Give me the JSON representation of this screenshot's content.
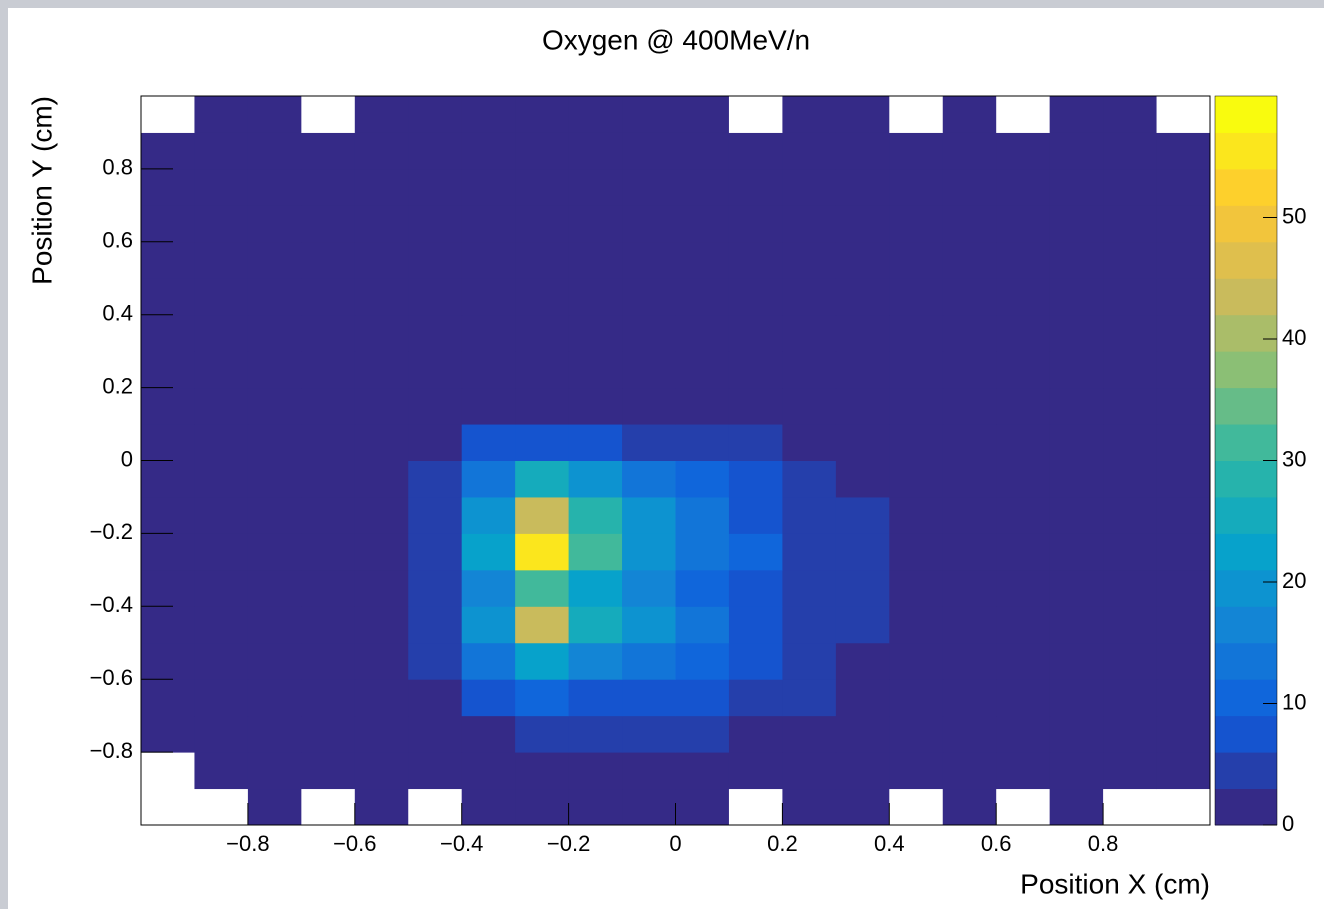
{
  "chart_data": {
    "type": "heatmap",
    "title": "Oxygen @ 400MeV/n",
    "x_label": "Position X (cm)",
    "y_label": "Position Y (cm)",
    "xbins": [
      -1,
      -0.9,
      -0.8,
      -0.7,
      -0.6,
      -0.5,
      -0.4,
      -0.3,
      -0.2,
      -0.1,
      0,
      0.1,
      0.2,
      0.3,
      0.4,
      0.5,
      0.6,
      0.7,
      0.8,
      0.9,
      1
    ],
    "ybins": [
      -1,
      -0.9,
      -0.8,
      -0.7,
      -0.6,
      -0.5,
      -0.4,
      -0.3,
      -0.2,
      -0.1,
      0,
      0.1,
      0.2,
      0.3,
      0.4,
      0.5,
      0.6,
      0.7,
      0.8,
      0.9,
      1
    ],
    "values": [
      [
        0,
        0,
        1,
        0,
        1,
        0,
        1,
        1,
        1,
        1,
        1,
        0,
        1,
        1,
        0,
        1,
        0,
        1,
        0,
        0
      ],
      [
        0,
        1,
        1,
        1,
        1,
        1,
        1,
        1,
        1,
        1,
        1,
        1,
        1,
        1,
        1,
        1,
        1,
        1,
        1,
        1
      ],
      [
        1,
        1,
        1,
        1,
        1,
        1,
        2,
        3,
        3,
        3,
        3,
        2,
        2,
        1,
        1,
        1,
        1,
        1,
        1,
        1
      ],
      [
        1,
        1,
        1,
        1,
        1,
        2,
        6,
        9,
        8,
        7,
        6,
        4,
        3,
        2,
        1,
        1,
        1,
        1,
        1,
        1
      ],
      [
        1,
        1,
        1,
        1,
        2,
        3,
        12,
        22,
        16,
        12,
        9,
        6,
        4,
        2,
        1,
        1,
        1,
        1,
        1,
        1
      ],
      [
        1,
        1,
        1,
        1,
        2,
        3,
        18,
        44,
        26,
        18,
        12,
        8,
        5,
        3,
        2,
        1,
        1,
        1,
        1,
        1
      ],
      [
        1,
        1,
        1,
        1,
        2,
        4,
        16,
        32,
        22,
        16,
        11,
        7,
        4,
        3,
        2,
        1,
        1,
        1,
        1,
        1
      ],
      [
        1,
        1,
        1,
        1,
        2,
        4,
        22,
        54,
        32,
        20,
        14,
        9,
        5,
        3,
        2,
        1,
        1,
        1,
        1,
        1
      ],
      [
        1,
        1,
        1,
        1,
        2,
        4,
        20,
        44,
        28,
        18,
        12,
        8,
        5,
        3,
        2,
        1,
        1,
        1,
        1,
        1
      ],
      [
        1,
        1,
        1,
        1,
        2,
        3,
        14,
        24,
        18,
        12,
        9,
        6,
        4,
        2,
        2,
        1,
        1,
        1,
        1,
        1
      ],
      [
        1,
        1,
        1,
        1,
        2,
        2,
        6,
        8,
        7,
        5,
        4,
        3,
        2,
        2,
        1,
        1,
        1,
        1,
        1,
        1
      ],
      [
        1,
        1,
        1,
        1,
        1,
        2,
        2,
        2,
        2,
        2,
        2,
        2,
        1,
        1,
        1,
        1,
        1,
        1,
        1,
        1
      ],
      [
        1,
        1,
        1,
        1,
        1,
        2,
        2,
        2,
        2,
        2,
        2,
        1,
        1,
        1,
        1,
        1,
        1,
        1,
        1,
        1
      ],
      [
        1,
        1,
        1,
        1,
        1,
        1,
        2,
        2,
        2,
        2,
        1,
        1,
        1,
        1,
        1,
        1,
        1,
        1,
        1,
        1
      ],
      [
        1,
        1,
        1,
        1,
        1,
        1,
        1,
        1,
        1,
        1,
        1,
        1,
        1,
        1,
        1,
        1,
        1,
        1,
        1,
        1
      ],
      [
        1,
        1,
        1,
        1,
        1,
        1,
        1,
        1,
        1,
        1,
        1,
        1,
        1,
        1,
        1,
        1,
        1,
        1,
        1,
        1
      ],
      [
        1,
        1,
        1,
        1,
        1,
        1,
        1,
        1,
        2,
        1,
        1,
        2,
        1,
        1,
        1,
        1,
        1,
        1,
        1,
        1
      ],
      [
        1,
        1,
        1,
        1,
        1,
        1,
        1,
        2,
        2,
        2,
        2,
        1,
        1,
        1,
        1,
        1,
        1,
        1,
        1,
        1
      ],
      [
        1,
        1,
        1,
        1,
        1,
        1,
        1,
        2,
        2,
        2,
        1,
        1,
        1,
        1,
        1,
        1,
        1,
        1,
        1,
        1
      ],
      [
        0,
        1,
        1,
        0,
        1,
        1,
        1,
        1,
        1,
        1,
        1,
        0,
        1,
        1,
        0,
        1,
        0,
        1,
        1,
        0
      ]
    ],
    "xlim": [
      -1,
      1
    ],
    "ylim": [
      -1,
      1
    ],
    "xticks": [
      {
        "value": -0.8,
        "label": "−0.8"
      },
      {
        "value": -0.6,
        "label": "−0.6"
      },
      {
        "value": -0.4,
        "label": "−0.4"
      },
      {
        "value": -0.2,
        "label": "−0.2"
      },
      0,
      0.2,
      0.4,
      0.6,
      0.8
    ],
    "yticks": [
      {
        "value": -0.8,
        "label": "−0.8"
      },
      {
        "value": -0.6,
        "label": "−0.6"
      },
      {
        "value": -0.4,
        "label": "−0.4"
      },
      {
        "value": -0.2,
        "label": "−0.2"
      },
      0,
      0.2,
      0.4,
      0.6,
      0.8
    ],
    "zlim": [
      0,
      60
    ],
    "zticks": [
      0,
      10,
      20,
      30,
      40,
      50
    ],
    "colorscale": [
      "#352a87",
      "#0f5cdd",
      "#1481d6",
      "#06a4ca",
      "#2eb7a4",
      "#87bf77",
      "#d1bb59",
      "#fec832",
      "#f9fb0e"
    ]
  }
}
